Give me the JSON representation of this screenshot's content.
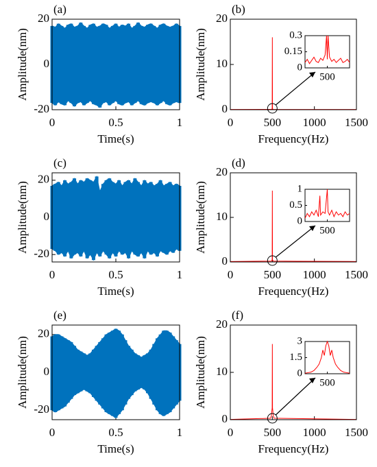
{
  "chart_data": [
    {
      "type": "band",
      "label": "(a)",
      "xlabel": "Time(s)",
      "ylabel": "Amplitude(nm)",
      "color": "#0072bd",
      "xlim": [
        0,
        1
      ],
      "xticks": [
        0,
        0.5,
        1
      ],
      "ylim": [
        -20,
        20
      ],
      "yticks": [
        -20,
        0,
        20
      ],
      "x": [
        0,
        0.025,
        0.05,
        0.075,
        0.1,
        0.125,
        0.15,
        0.175,
        0.2,
        0.225,
        0.25,
        0.275,
        0.3,
        0.325,
        0.35,
        0.375,
        0.4,
        0.425,
        0.45,
        0.475,
        0.5,
        0.525,
        0.55,
        0.575,
        0.6,
        0.625,
        0.65,
        0.675,
        0.7,
        0.725,
        0.75,
        0.775,
        0.8,
        0.825,
        0.85,
        0.875,
        0.9,
        0.925,
        0.95,
        0.975,
        1
      ],
      "upper": [
        17,
        16.5,
        18,
        17,
        16,
        17.5,
        18,
        16.5,
        17,
        18.5,
        17,
        16,
        17.5,
        18,
        16.5,
        17,
        18,
        17.5,
        16,
        17,
        18,
        16.5,
        17.5,
        17,
        18,
        16,
        17,
        18.5,
        17,
        16.5,
        17.5,
        18,
        17,
        16,
        17.5,
        18,
        17,
        16.5,
        17,
        18,
        17
      ],
      "lower": [
        -17,
        -18,
        -16.5,
        -17.5,
        -18,
        -16,
        -17,
        -18.5,
        -17,
        -16.5,
        -18,
        -17,
        -16,
        -17.5,
        -18,
        -19,
        -17,
        -16.5,
        -18,
        -17,
        -16,
        -17.5,
        -18,
        -17,
        -16.5,
        -18,
        -17,
        -16,
        -17.5,
        -18,
        -17,
        -16.5,
        -17,
        -18,
        -17,
        -16,
        -17.5,
        -18,
        -17,
        -16.5,
        -17
      ]
    },
    {
      "type": "line",
      "label": "(b)",
      "xlabel": "Frequency(Hz)",
      "ylabel": "Amplitude(nm)",
      "color": "#ff0000",
      "xlim": [
        0,
        1500
      ],
      "xticks": [
        0,
        500,
        1000,
        1500
      ],
      "ylim": [
        0,
        20
      ],
      "yticks": [
        0,
        10,
        20
      ],
      "x": [
        0,
        490,
        498,
        500,
        502,
        510,
        1500
      ],
      "values": [
        0.05,
        0.08,
        0.2,
        16,
        0.2,
        0.08,
        0.05
      ],
      "inset": {
        "xlim": [
          470,
          530
        ],
        "xticks": [
          500
        ],
        "ylim": [
          0,
          0.3
        ],
        "yticks": [
          0,
          0.15,
          0.3
        ],
        "x": [
          470,
          473,
          476,
          479,
          482,
          485,
          488,
          491,
          494,
          497,
          499,
          500,
          501,
          503,
          506,
          509,
          512,
          515,
          518,
          521,
          524,
          527,
          530
        ],
        "values": [
          0.05,
          0.08,
          0.04,
          0.07,
          0.1,
          0.06,
          0.05,
          0.09,
          0.07,
          0.12,
          0.3,
          0.08,
          0.3,
          0.1,
          0.06,
          0.08,
          0.05,
          0.07,
          0.09,
          0.05,
          0.06,
          0.08,
          0.05
        ]
      }
    },
    {
      "type": "band",
      "label": "(c)",
      "xlabel": "Time(s)",
      "ylabel": "Amplitude(nm)",
      "color": "#0072bd",
      "xlim": [
        0,
        1
      ],
      "xticks": [
        0,
        0.5,
        1
      ],
      "ylim": [
        -24,
        24
      ],
      "yticks": [
        -20,
        0,
        20
      ],
      "x": [
        0,
        0.025,
        0.05,
        0.075,
        0.1,
        0.125,
        0.15,
        0.175,
        0.2,
        0.225,
        0.25,
        0.275,
        0.3,
        0.325,
        0.35,
        0.375,
        0.4,
        0.425,
        0.45,
        0.475,
        0.5,
        0.525,
        0.55,
        0.575,
        0.6,
        0.625,
        0.65,
        0.675,
        0.7,
        0.725,
        0.75,
        0.775,
        0.8,
        0.825,
        0.85,
        0.875,
        0.9,
        0.925,
        0.95,
        0.975,
        1
      ],
      "upper": [
        17,
        18,
        19,
        17,
        20,
        18,
        19,
        21,
        18,
        20,
        19,
        21,
        20,
        19,
        22,
        14,
        18,
        20,
        21,
        19,
        18,
        20,
        17,
        19,
        20,
        18,
        21,
        19,
        17,
        20,
        18,
        19,
        17,
        18,
        20,
        17,
        18,
        19,
        17,
        18,
        17
      ],
      "lower": [
        -17,
        -18,
        -20,
        -19,
        -21,
        -18,
        -22,
        -20,
        -19,
        -21,
        -18,
        -22,
        -20,
        -23,
        -19,
        -21,
        -18,
        -20,
        -22,
        -19,
        -21,
        -18,
        -20,
        -19,
        -22,
        -18,
        -20,
        -21,
        -19,
        -22,
        -18,
        -20,
        -19,
        -21,
        -18,
        -19,
        -20,
        -18,
        -19,
        -17,
        -18
      ]
    },
    {
      "type": "line",
      "label": "(d)",
      "xlabel": "Frequency(Hz)",
      "ylabel": "Amplitude(nm)",
      "color": "#ff0000",
      "xlim": [
        0,
        1500
      ],
      "xticks": [
        0,
        500,
        1000,
        1500
      ],
      "ylim": [
        0,
        20
      ],
      "yticks": [
        0,
        10,
        20
      ],
      "x": [
        0,
        490,
        498,
        500,
        502,
        510,
        800,
        1500
      ],
      "values": [
        0.1,
        0.2,
        0.5,
        16,
        0.5,
        0.2,
        0.15,
        0.1
      ],
      "inset": {
        "xlim": [
          470,
          530
        ],
        "xticks": [
          500
        ],
        "ylim": [
          0,
          1
        ],
        "yticks": [
          0,
          0.5,
          1
        ],
        "x": [
          470,
          473,
          476,
          479,
          482,
          485,
          488,
          490,
          491,
          494,
          497,
          500,
          501,
          503,
          506,
          509,
          512,
          515,
          518,
          521,
          524,
          527,
          530
        ],
        "values": [
          0.1,
          0.25,
          0.15,
          0.3,
          0.2,
          0.35,
          0.15,
          0.8,
          0.2,
          0.3,
          0.25,
          1,
          0.3,
          0.2,
          0.35,
          0.15,
          0.3,
          0.2,
          0.25,
          0.15,
          0.3,
          0.2,
          0.25
        ]
      }
    },
    {
      "type": "band",
      "label": "(e)",
      "xlabel": "Time(s)",
      "ylabel": "Amplitude(nm)",
      "color": "#0072bd",
      "xlim": [
        0,
        1
      ],
      "xticks": [
        0,
        0.5,
        1
      ],
      "ylim": [
        -25,
        25
      ],
      "yticks": [
        -20,
        0,
        20
      ],
      "x": [
        0,
        0.025,
        0.05,
        0.075,
        0.1,
        0.125,
        0.15,
        0.175,
        0.2,
        0.225,
        0.25,
        0.275,
        0.3,
        0.325,
        0.35,
        0.375,
        0.4,
        0.425,
        0.45,
        0.475,
        0.5,
        0.525,
        0.55,
        0.575,
        0.6,
        0.625,
        0.65,
        0.675,
        0.7,
        0.725,
        0.75,
        0.775,
        0.8,
        0.825,
        0.85,
        0.875,
        0.9,
        0.925,
        0.95,
        0.975,
        1
      ],
      "upper": [
        19,
        20,
        20,
        19,
        18,
        17,
        16,
        14,
        12,
        11,
        10,
        9,
        10,
        12,
        14,
        16,
        18,
        20,
        21,
        22,
        23,
        22,
        20,
        17,
        14,
        12,
        10,
        9,
        8,
        9,
        10,
        12,
        15,
        18,
        20,
        22,
        22,
        21,
        19,
        17,
        15
      ],
      "lower": [
        -20,
        -21,
        -20,
        -19,
        -18,
        -16,
        -14,
        -12,
        -11,
        -10,
        -9,
        -10,
        -11,
        -13,
        -15,
        -17,
        -19,
        -21,
        -22,
        -23,
        -24,
        -22,
        -20,
        -17,
        -14,
        -12,
        -10,
        -9,
        -8,
        -9,
        -11,
        -14,
        -17,
        -20,
        -22,
        -23,
        -22,
        -21,
        -19,
        -17,
        -15
      ]
    },
    {
      "type": "line",
      "label": "(f)",
      "xlabel": "Frequency(Hz)",
      "ylabel": "Amplitude(nm)",
      "color": "#ff0000",
      "xlim": [
        0,
        1500
      ],
      "xticks": [
        0,
        500,
        1000,
        1500
      ],
      "ylim": [
        0,
        20
      ],
      "yticks": [
        0,
        10,
        20
      ],
      "x": [
        0,
        480,
        490,
        495,
        498,
        500,
        502,
        505,
        510,
        520,
        1500
      ],
      "values": [
        0.05,
        0.3,
        1,
        2,
        2.5,
        16,
        2.5,
        2,
        1,
        0.3,
        0.05
      ],
      "inset": {
        "xlim": [
          470,
          530
        ],
        "xticks": [
          500
        ],
        "ylim": [
          0,
          3
        ],
        "yticks": [
          0,
          1.5,
          3
        ],
        "x": [
          470,
          474,
          478,
          482,
          486,
          489,
          492,
          494,
          496,
          498,
          500,
          502,
          504,
          506,
          508,
          511,
          514,
          518,
          522,
          526,
          530
        ],
        "values": [
          0.05,
          0.1,
          0.15,
          0.3,
          0.6,
          0.9,
          1.5,
          2.2,
          1.7,
          2.6,
          3,
          2.6,
          1.7,
          2.2,
          1.5,
          0.9,
          0.6,
          0.3,
          0.15,
          0.1,
          0.05
        ]
      }
    }
  ]
}
